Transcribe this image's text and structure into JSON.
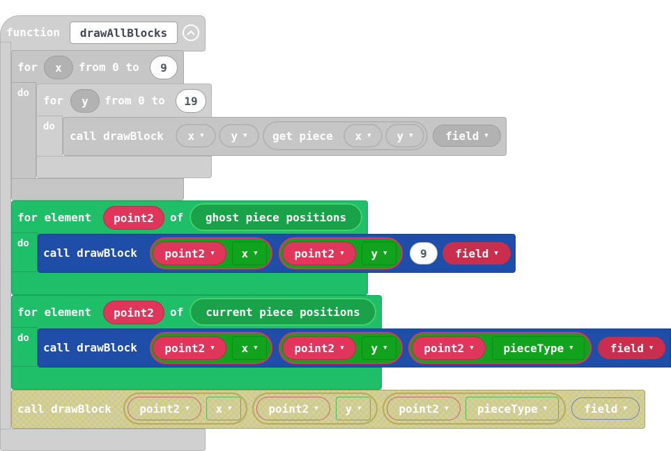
{
  "function_block": {
    "keyword": "function",
    "name": "drawAllBlocks",
    "collapse_icon": "chevron-up-circle-icon"
  },
  "outer_loop": {
    "for": "for",
    "var": "x",
    "from": "from 0 to",
    "to_value": "9",
    "do": "do"
  },
  "inner_loop": {
    "for": "for",
    "var": "y",
    "from": "from 0 to",
    "to_value": "19",
    "do": "do"
  },
  "grey_call": {
    "call": "call drawBlock",
    "arg_x": "x",
    "arg_y": "y",
    "get_piece": "get piece",
    "gp_x": "x",
    "gp_y": "y",
    "field": "field"
  },
  "ghost_loop": {
    "for_element": "for element",
    "var": "point2",
    "of": "of",
    "collection": "ghost piece positions",
    "do": "do",
    "call": "call drawBlock",
    "arg1_obj": "point2",
    "arg1_prop": "x",
    "arg2_obj": "point2",
    "arg2_prop": "y",
    "arg3": "9",
    "arg4": "field"
  },
  "current_loop": {
    "for_element": "for element",
    "var": "point2",
    "of": "of",
    "collection": "current piece positions",
    "do": "do",
    "call": "call drawBlock",
    "arg1_obj": "point2",
    "arg1_prop": "x",
    "arg2_obj": "point2",
    "arg2_prop": "y",
    "arg3_obj": "point2",
    "arg3_prop": "pieceType",
    "arg4": "field"
  },
  "hatched_call": {
    "call": "call drawBlock",
    "arg1_obj": "point2",
    "arg1_prop": "x",
    "arg2_obj": "point2",
    "arg2_prop": "y",
    "arg3_obj": "point2",
    "arg3_prop": "pieceType",
    "arg4": "field"
  },
  "colors": {
    "grey_block": "#d0d0d0",
    "loop_green": "#1fbf6a",
    "call_blue": "#1e4ea8",
    "variable_red": "#e0365b",
    "property_green": "#12a31e",
    "disabled_hatch": "#d6d28c"
  }
}
